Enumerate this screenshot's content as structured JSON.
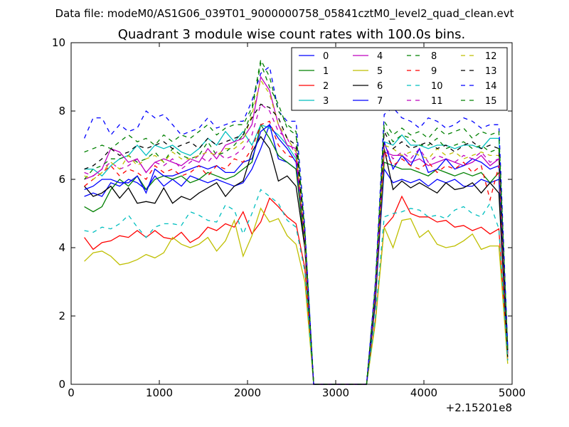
{
  "header": {
    "data_file": "Data file: modeM0/AS1G06_039T01_9000000758_05841cztM0_level2_quad_clean.evt"
  },
  "chart_data": {
    "type": "line",
    "title": "Quadrant 3 module wise count rates with 100.0s bins.",
    "xlabel": "",
    "ylabel": "",
    "xlim": [
      0,
      5000
    ],
    "ylim": [
      0,
      10
    ],
    "x_offset_label": "+2.15201e8",
    "x_ticks": [
      0,
      1000,
      2000,
      3000,
      4000,
      5000
    ],
    "x_tick_labels": [
      "0",
      "1000",
      "2000",
      "3000",
      "4000",
      "5000"
    ],
    "y_ticks": [
      0,
      2,
      4,
      6,
      8,
      10
    ],
    "y_tick_labels": [
      "0",
      "2",
      "4",
      "6",
      "8",
      "10"
    ],
    "grid": false,
    "legend_position": "top-right",
    "legend_columns": 4,
    "x": [
      150,
      250,
      350,
      450,
      550,
      650,
      750,
      850,
      950,
      1050,
      1150,
      1250,
      1350,
      1450,
      1550,
      1650,
      1750,
      1850,
      1950,
      2050,
      2150,
      2250,
      2350,
      2450,
      2550,
      2650,
      2750,
      2850,
      2950,
      3050,
      3150,
      3250,
      3350,
      3450,
      3550,
      3650,
      3750,
      3850,
      3950,
      4050,
      4150,
      4250,
      4350,
      4450,
      4550,
      4650,
      4750,
      4850,
      4950
    ],
    "series": [
      {
        "name": "0",
        "color": "#0000ff",
        "dash": false,
        "values": [
          5.5,
          5.6,
          5.5,
          5.9,
          5.8,
          6.0,
          5.9,
          5.7,
          6.1,
          5.8,
          6.0,
          5.8,
          6.1,
          6.0,
          5.9,
          6.0,
          5.9,
          5.8,
          5.9,
          6.3,
          6.9,
          7.6,
          6.6,
          6.5,
          6.3,
          4.3,
          0.0,
          0.0,
          0.0,
          0.0,
          0.0,
          0.0,
          0.0,
          2.5,
          6.3,
          5.9,
          6.0,
          5.9,
          6.0,
          5.8,
          6.0,
          5.9,
          6.0,
          5.8,
          5.8,
          6.0,
          5.9,
          6.0,
          0.9
        ]
      },
      {
        "name": "1",
        "color": "#008000",
        "dash": false,
        "values": [
          5.2,
          5.05,
          5.2,
          5.7,
          6.0,
          5.8,
          6.1,
          5.7,
          6.0,
          6.1,
          6.0,
          6.1,
          5.9,
          6.0,
          6.2,
          6.1,
          6.0,
          6.1,
          6.3,
          6.5,
          7.6,
          7.2,
          6.7,
          6.5,
          6.3,
          4.0,
          0.0,
          0.0,
          0.0,
          0.0,
          0.0,
          0.0,
          0.0,
          2.6,
          6.5,
          6.4,
          6.3,
          6.3,
          6.2,
          6.1,
          6.3,
          6.2,
          6.1,
          6.2,
          6.1,
          6.2,
          5.9,
          6.2,
          1.0
        ]
      },
      {
        "name": "2",
        "color": "#ff0000",
        "dash": false,
        "values": [
          4.3,
          3.95,
          4.15,
          4.2,
          4.35,
          4.3,
          4.5,
          4.3,
          4.5,
          4.3,
          4.25,
          4.45,
          4.15,
          4.3,
          4.6,
          4.5,
          4.7,
          4.6,
          5.05,
          4.4,
          4.75,
          5.45,
          5.2,
          4.9,
          4.7,
          3.4,
          0.0,
          0.0,
          0.0,
          0.0,
          0.0,
          0.0,
          0.0,
          1.9,
          4.6,
          4.9,
          5.5,
          5.0,
          4.9,
          4.9,
          4.75,
          4.8,
          4.6,
          4.65,
          4.5,
          4.6,
          4.4,
          4.55,
          0.7
        ]
      },
      {
        "name": "3",
        "color": "#00bfbf",
        "dash": false,
        "values": [
          6.3,
          6.3,
          6.1,
          6.4,
          6.6,
          6.7,
          7.0,
          6.7,
          7.0,
          6.9,
          7.0,
          6.8,
          6.7,
          6.9,
          7.2,
          7.0,
          7.4,
          7.1,
          7.4,
          7.0,
          7.6,
          7.5,
          7.3,
          7.0,
          6.6,
          4.3,
          0.0,
          0.0,
          0.0,
          0.0,
          0.0,
          0.0,
          0.0,
          2.8,
          7.1,
          7.0,
          7.3,
          7.0,
          7.0,
          6.9,
          7.0,
          7.0,
          6.9,
          7.0,
          7.0,
          6.9,
          7.2,
          7.2,
          1.1
        ]
      },
      {
        "name": "4",
        "color": "#bf00bf",
        "dash": false,
        "values": [
          6.0,
          6.1,
          6.3,
          6.9,
          6.8,
          6.5,
          6.6,
          6.2,
          6.5,
          6.6,
          6.5,
          6.4,
          6.6,
          6.5,
          6.9,
          6.6,
          7.0,
          7.1,
          7.2,
          7.6,
          9.0,
          8.6,
          7.6,
          7.0,
          6.9,
          4.2,
          0.0,
          0.0,
          0.0,
          0.0,
          0.0,
          0.0,
          0.0,
          2.7,
          6.8,
          6.7,
          6.7,
          6.5,
          6.6,
          6.4,
          6.5,
          6.6,
          6.5,
          6.4,
          6.5,
          6.7,
          6.4,
          6.6,
          1.0
        ]
      },
      {
        "name": "5",
        "color": "#bfbf00",
        "dash": false,
        "values": [
          3.6,
          3.85,
          3.9,
          3.75,
          3.5,
          3.55,
          3.65,
          3.8,
          3.7,
          3.85,
          4.3,
          4.1,
          4.0,
          4.1,
          4.3,
          3.9,
          4.2,
          4.8,
          3.75,
          4.35,
          5.15,
          4.75,
          4.85,
          4.35,
          4.1,
          3.0,
          0.0,
          0.0,
          0.0,
          0.0,
          0.0,
          0.0,
          0.0,
          1.8,
          4.6,
          4.0,
          4.8,
          4.85,
          4.3,
          4.5,
          4.1,
          4.0,
          4.05,
          4.2,
          4.4,
          3.95,
          4.05,
          4.05,
          0.6
        ]
      },
      {
        "name": "6",
        "color": "#000000",
        "dash": false,
        "values": [
          5.8,
          5.5,
          5.6,
          5.8,
          5.45,
          5.75,
          5.3,
          5.35,
          5.3,
          5.75,
          5.3,
          5.5,
          5.4,
          5.6,
          5.75,
          5.9,
          5.5,
          5.8,
          5.95,
          6.8,
          7.25,
          6.9,
          5.95,
          6.1,
          5.8,
          4.0,
          0.0,
          0.0,
          0.0,
          0.0,
          0.0,
          0.0,
          0.0,
          2.4,
          6.9,
          5.7,
          5.95,
          5.75,
          5.9,
          5.75,
          5.6,
          5.9,
          5.7,
          5.75,
          5.9,
          5.6,
          5.9,
          5.6,
          0.8
        ]
      },
      {
        "name": "7",
        "color": "#0000ff",
        "dash": false,
        "values": [
          5.7,
          5.8,
          6.0,
          6.0,
          5.9,
          5.9,
          6.1,
          5.6,
          6.3,
          6.1,
          6.1,
          6.2,
          6.3,
          6.4,
          6.3,
          6.4,
          6.2,
          6.2,
          6.5,
          6.6,
          7.4,
          7.6,
          7.2,
          6.9,
          6.5,
          4.2,
          0.0,
          0.0,
          0.0,
          0.0,
          0.0,
          0.0,
          0.0,
          2.6,
          7.1,
          6.3,
          6.7,
          6.4,
          6.9,
          6.2,
          6.3,
          6.6,
          6.3,
          6.4,
          6.6,
          6.5,
          6.3,
          6.4,
          0.9
        ]
      },
      {
        "name": "8",
        "color": "#008000",
        "dash": true,
        "values": [
          6.0,
          6.3,
          6.4,
          6.6,
          6.6,
          6.7,
          6.5,
          6.6,
          6.8,
          6.5,
          6.9,
          6.7,
          6.6,
          6.7,
          7.1,
          6.7,
          6.8,
          7.0,
          7.3,
          8.0,
          9.4,
          8.7,
          8.2,
          7.5,
          7.3,
          4.5,
          0.0,
          0.0,
          0.0,
          0.0,
          0.0,
          0.0,
          0.0,
          2.9,
          7.5,
          7.1,
          7.3,
          7.2,
          7.0,
          7.0,
          7.2,
          6.9,
          7.0,
          7.1,
          6.9,
          7.0,
          6.8,
          6.9,
          1.0
        ]
      },
      {
        "name": "9",
        "color": "#ff0000",
        "dash": true,
        "values": [
          5.8,
          6.0,
          6.2,
          6.4,
          6.1,
          6.3,
          6.2,
          6.0,
          6.4,
          6.2,
          6.3,
          6.1,
          6.2,
          6.4,
          6.1,
          6.4,
          6.3,
          6.6,
          6.5,
          6.9,
          7.6,
          7.7,
          7.0,
          6.7,
          6.6,
          4.2,
          0.0,
          0.0,
          0.0,
          0.0,
          0.0,
          0.0,
          0.0,
          2.7,
          6.8,
          6.4,
          6.6,
          6.4,
          6.3,
          6.5,
          6.2,
          6.4,
          6.3,
          6.5,
          6.2,
          6.4,
          5.4,
          6.4,
          0.9
        ]
      },
      {
        "name": "10",
        "color": "#00bfbf",
        "dash": true,
        "values": [
          4.5,
          4.45,
          4.6,
          4.55,
          4.7,
          4.95,
          4.6,
          4.3,
          4.6,
          4.7,
          4.7,
          4.65,
          5.05,
          4.95,
          4.8,
          4.75,
          5.25,
          5.1,
          4.4,
          5.0,
          5.7,
          5.5,
          5.3,
          4.8,
          4.6,
          3.3,
          0.0,
          0.0,
          0.0,
          0.0,
          0.0,
          0.0,
          0.0,
          2.0,
          4.9,
          5.0,
          5.05,
          5.15,
          5.1,
          4.9,
          4.95,
          4.85,
          5.1,
          5.2,
          5.0,
          4.9,
          5.3,
          4.55,
          0.7
        ]
      },
      {
        "name": "11",
        "color": "#bf00bf",
        "dash": true,
        "values": [
          6.2,
          6.1,
          6.3,
          6.5,
          6.3,
          6.4,
          6.6,
          6.2,
          6.5,
          6.4,
          6.6,
          6.3,
          6.5,
          6.7,
          6.5,
          6.8,
          6.6,
          6.7,
          6.9,
          7.3,
          8.2,
          8.0,
          7.4,
          7.2,
          6.7,
          4.3,
          0.0,
          0.0,
          0.0,
          0.0,
          0.0,
          0.0,
          0.0,
          2.8,
          7.0,
          6.6,
          6.8,
          6.6,
          6.9,
          6.5,
          6.7,
          6.6,
          6.5,
          6.7,
          6.6,
          6.8,
          6.5,
          6.6,
          1.0
        ]
      },
      {
        "name": "12",
        "color": "#bfbf00",
        "dash": true,
        "values": [
          6.1,
          6.0,
          6.2,
          6.5,
          6.3,
          6.7,
          6.4,
          6.6,
          6.7,
          6.5,
          6.8,
          6.6,
          6.6,
          6.7,
          6.8,
          6.7,
          6.9,
          6.9,
          7.1,
          7.9,
          8.9,
          8.5,
          7.6,
          7.2,
          6.8,
          4.2,
          0.0,
          0.0,
          0.0,
          0.0,
          0.0,
          0.0,
          0.0,
          2.8,
          7.0,
          6.9,
          6.7,
          6.8,
          6.7,
          6.6,
          6.9,
          6.7,
          6.8,
          6.6,
          6.7,
          6.8,
          6.7,
          6.7,
          1.0
        ]
      },
      {
        "name": "13",
        "color": "#000000",
        "dash": true,
        "values": [
          6.3,
          6.4,
          6.6,
          6.9,
          6.7,
          6.8,
          7.0,
          6.9,
          7.0,
          7.1,
          6.9,
          7.0,
          7.1,
          6.9,
          7.2,
          7.0,
          7.1,
          7.2,
          7.3,
          7.8,
          8.2,
          8.1,
          7.8,
          7.2,
          7.0,
          4.4,
          0.0,
          0.0,
          0.0,
          0.0,
          0.0,
          0.0,
          0.0,
          2.9,
          7.4,
          6.9,
          7.1,
          6.9,
          7.0,
          7.1,
          6.9,
          7.0,
          6.8,
          7.0,
          7.1,
          6.9,
          7.0,
          6.9,
          1.0
        ]
      },
      {
        "name": "14",
        "color": "#0000ff",
        "dash": true,
        "values": [
          7.2,
          7.8,
          7.8,
          7.3,
          7.6,
          7.4,
          7.5,
          8.0,
          7.8,
          7.9,
          7.6,
          7.3,
          7.4,
          7.5,
          7.8,
          7.5,
          7.6,
          7.7,
          7.7,
          8.3,
          9.1,
          9.3,
          8.0,
          7.7,
          7.7,
          4.6,
          0.0,
          0.0,
          0.0,
          0.0,
          0.0,
          0.0,
          0.0,
          3.0,
          7.9,
          8.1,
          7.8,
          7.7,
          7.5,
          7.8,
          7.7,
          7.5,
          7.6,
          7.8,
          7.7,
          7.5,
          7.6,
          7.6,
          1.1
        ]
      },
      {
        "name": "15",
        "color": "#008000",
        "dash": true,
        "values": [
          6.8,
          6.9,
          7.0,
          6.9,
          7.1,
          7.3,
          7.1,
          7.2,
          7.0,
          7.3,
          7.1,
          7.3,
          7.2,
          7.4,
          7.6,
          7.3,
          7.5,
          7.6,
          7.6,
          8.1,
          9.5,
          9.0,
          8.0,
          7.6,
          7.4,
          4.5,
          0.0,
          0.0,
          0.0,
          0.0,
          0.0,
          0.0,
          0.0,
          2.9,
          7.7,
          7.3,
          7.5,
          7.3,
          7.4,
          7.2,
          7.5,
          7.3,
          7.4,
          7.5,
          7.2,
          7.4,
          7.3,
          7.4,
          1.0
        ]
      }
    ]
  }
}
